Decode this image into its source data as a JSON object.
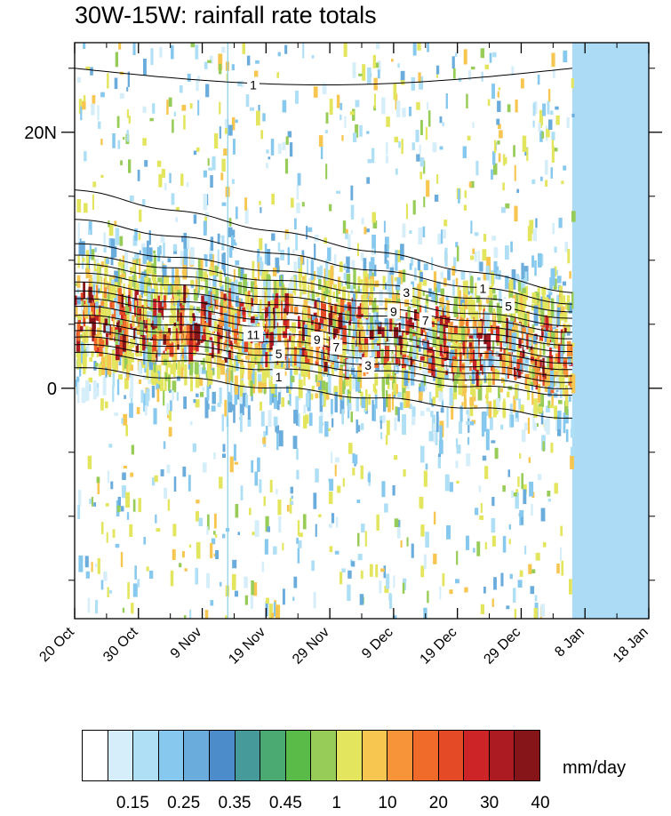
{
  "title": "30W-15W: rainfall rate totals",
  "colors": {
    "missing_fill": "#acdcf5",
    "contour": "#000000",
    "grid_line": "#87cde9"
  },
  "chart_data": {
    "type": "heatmap",
    "title": "30W-15W: rainfall rate totals",
    "x_axis": {
      "type": "date",
      "range": [
        "20 Oct",
        "18 Jan"
      ],
      "tick_labels": [
        "20 Oct",
        "30 Oct",
        "9 Nov",
        "19 Nov",
        "29 Nov",
        "9 Dec",
        "19 Dec",
        "29 Dec",
        "8 Jan",
        "18 Jan"
      ],
      "data_ends": "6 Jan"
    },
    "y_axis": {
      "range": [
        -18,
        27
      ],
      "tick_labels": [
        {
          "value": 20,
          "label": "20N"
        },
        {
          "value": 0,
          "label": "0"
        }
      ],
      "minor_tick_values": [
        -15,
        -10,
        -5,
        5,
        10,
        15,
        25
      ]
    },
    "colorbar": {
      "units": "mm/day",
      "levels": [
        "0.15",
        "0.25",
        "0.35",
        "0.45",
        "1",
        "10",
        "20",
        "30",
        "40"
      ],
      "colors": [
        "#ffffff",
        "#d6eef9",
        "#afdff5",
        "#86c8ee",
        "#6aacdc",
        "#4c8cca",
        "#469a9a",
        "#4aaa72",
        "#5bbb49",
        "#98cc58",
        "#e3e55e",
        "#f7c650",
        "#f79339",
        "#f06a29",
        "#e44a26",
        "#cd2428",
        "#ad1b22",
        "#861519"
      ]
    },
    "overlay_contours": {
      "description_values_shown": [
        "1",
        "3",
        "5",
        "7",
        "9",
        "11"
      ],
      "labels": [
        {
          "text": "1",
          "x": "17 Nov",
          "y": 23.7
        },
        {
          "text": "1",
          "x": "23 Dec",
          "y": 7.8
        },
        {
          "text": "3",
          "x": "11 Dec",
          "y": 7.5
        },
        {
          "text": "5",
          "x": "27 Dec",
          "y": 6.4
        },
        {
          "text": "7",
          "x": "14 Dec",
          "y": 5.3
        },
        {
          "text": "9",
          "x": "27 Nov",
          "y": 3.8
        },
        {
          "text": "9",
          "x": "9 Dec",
          "y": 6.0
        },
        {
          "text": "11",
          "x": "17 Nov",
          "y": 4.2
        },
        {
          "text": "5",
          "x": "21 Nov",
          "y": 2.7
        },
        {
          "text": "7",
          "x": "30 Nov",
          "y": 3.2
        },
        {
          "text": "3",
          "x": "5 Dec",
          "y": 1.8
        },
        {
          "text": "1",
          "x": "21 Nov",
          "y": 0.9
        }
      ]
    }
  }
}
